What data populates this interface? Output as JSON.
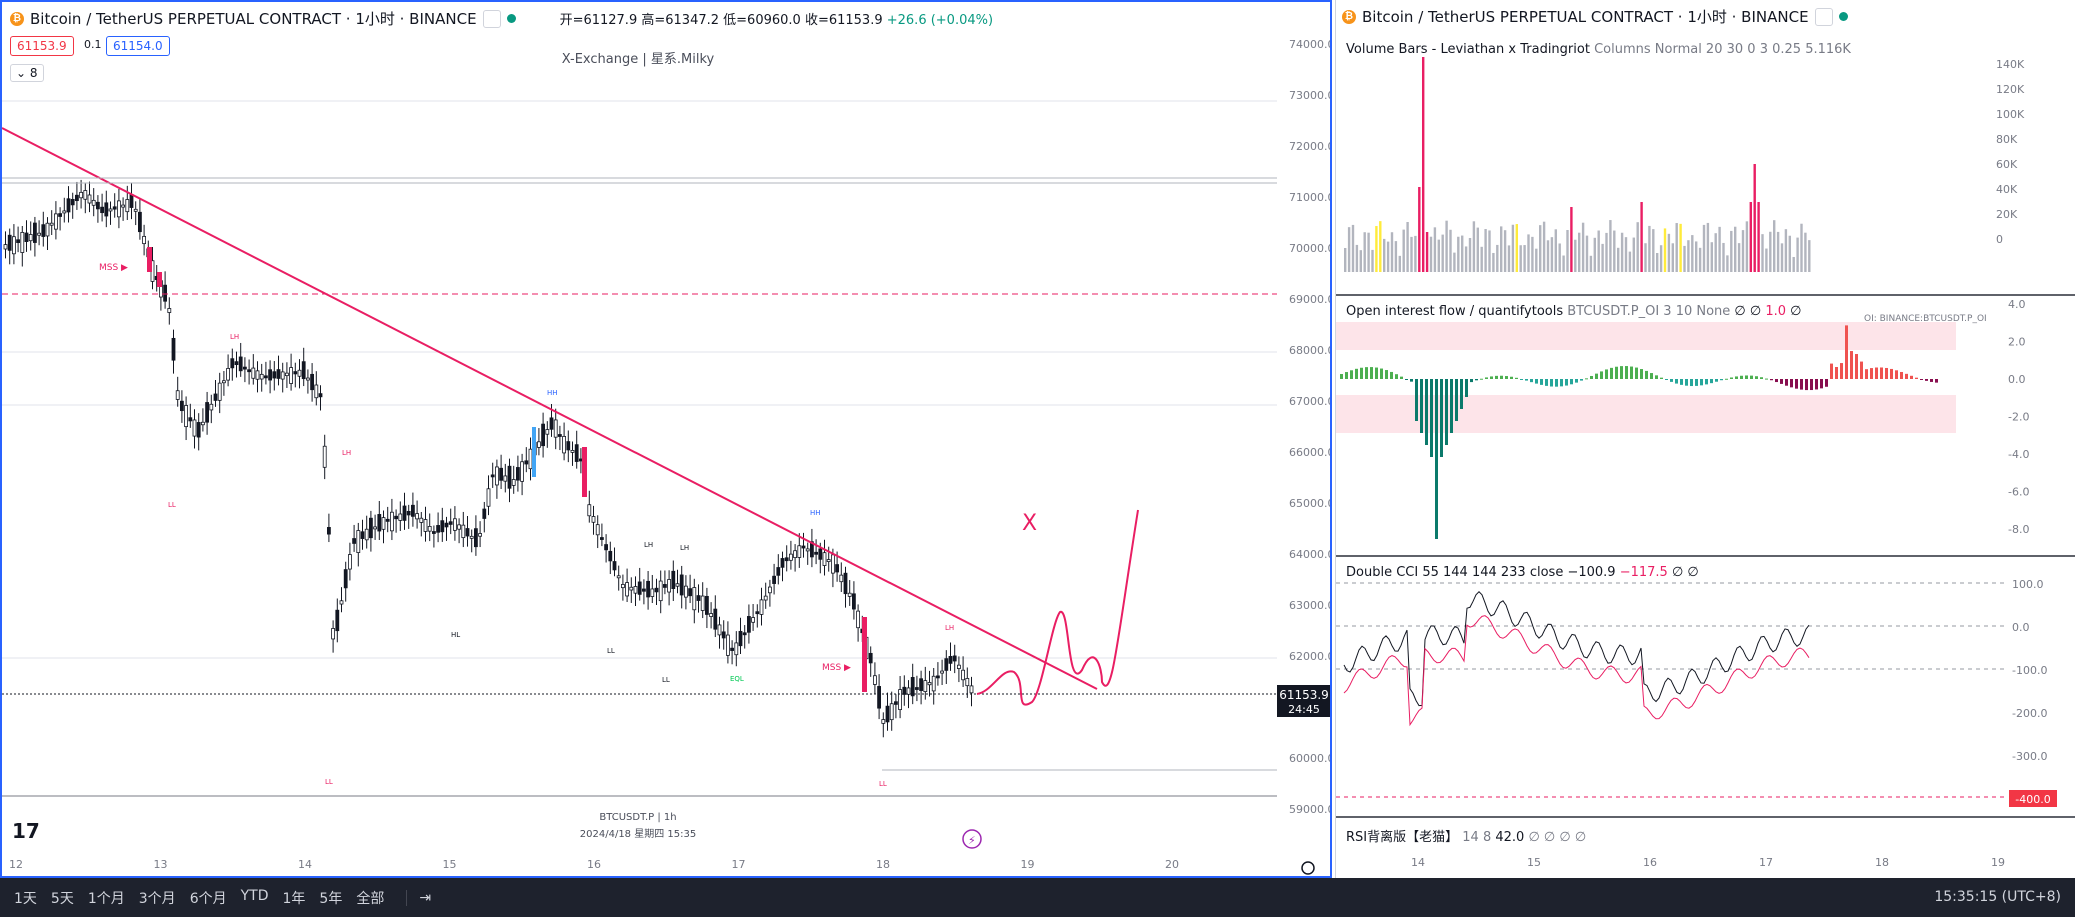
{
  "left": {
    "symbol_title": "Bitcoin / TetherUS PERPETUAL CONTRACT · 1小时 · BINANCE",
    "ohlc": {
      "open": "开=61127.9",
      "high": "高=61347.2",
      "low": "低=60960.0",
      "close": "收=61153.9",
      "change": "+26.6 (+0.04%)"
    },
    "sell_price": "61153.9",
    "spread": "0.1",
    "buy_price": "61154.0",
    "layers_count": "8",
    "watermark": "X-Exchange | 星系.Milky",
    "footer_symbol": "BTCUSDT.P | 1h",
    "footer_datetime": "2024/4/18 星期四 15:35",
    "last_price": "61153.9",
    "countdown": "24:45",
    "price_labels": [
      "74000.0",
      "73000.0",
      "72000.0",
      "71000.0",
      "70000.0",
      "69000.0",
      "68000.0",
      "67000.0",
      "66000.0",
      "65000.0",
      "64000.0",
      "63000.0",
      "62000.0",
      "61000.0",
      "60000.0",
      "59000.0"
    ],
    "date_labels": [
      "12",
      "13",
      "14",
      "15",
      "16",
      "17",
      "18",
      "19",
      "20"
    ],
    "annotations": {
      "mss": "MSS ▶",
      "lh": "LH",
      "ll": "LL",
      "hh": "HH",
      "hl": "HL",
      "eql": "EQL",
      "x_mark": "X"
    }
  },
  "right": {
    "symbol_title": "Bitcoin / TetherUS PERPETUAL CONTRACT · 1小时 · BINANCE",
    "volume": {
      "name": "Volume Bars - Leviathan x Tradingriot",
      "params": "Columns Normal 20 30 0 3 0.25",
      "value": "5.116K",
      "axis": [
        "140K",
        "120K",
        "100K",
        "80K",
        "60K",
        "40K",
        "20K",
        "0"
      ]
    },
    "oi": {
      "name": "Open interest flow / quantifytools",
      "params": "BTCUSDT.P_OI 3 10 None",
      "v1": "∅ ∅",
      "v2": "1.0",
      "v3": "∅",
      "tag": "OI: BINANCE:BTCUSDT.P_OI",
      "axis": [
        "4.0",
        "2.0",
        "0.0",
        "-2.0",
        "-4.0",
        "-6.0",
        "-8.0"
      ]
    },
    "cci": {
      "name": "Double CCI 55 144 144 233 close",
      "v1": "−100.9",
      "v2": "−117.5",
      "v3": "∅ ∅",
      "axis": [
        "100.0",
        "0.0",
        "-100.0",
        "-200.0",
        "-300.0"
      ],
      "badge": "-400.0"
    },
    "rsi": {
      "name": "RSI背离版【老猫】",
      "params": "14 8",
      "value": "42.0",
      "rest": "∅ ∅ ∅ ∅"
    },
    "date_labels": [
      "14",
      "15",
      "16",
      "17",
      "18",
      "19"
    ]
  },
  "bottombar": {
    "timeframes": [
      "1天",
      "5天",
      "1个月",
      "3个月",
      "6个月",
      "YTD",
      "1年",
      "5年",
      "全部"
    ],
    "clock": "15:35:15 (UTC+8)"
  },
  "colors": {
    "accent": "#2962ff",
    "bear": "#000000",
    "pink": "#e91e63",
    "teal": "#26a69a",
    "volume_gray": "#b2b5be"
  }
}
